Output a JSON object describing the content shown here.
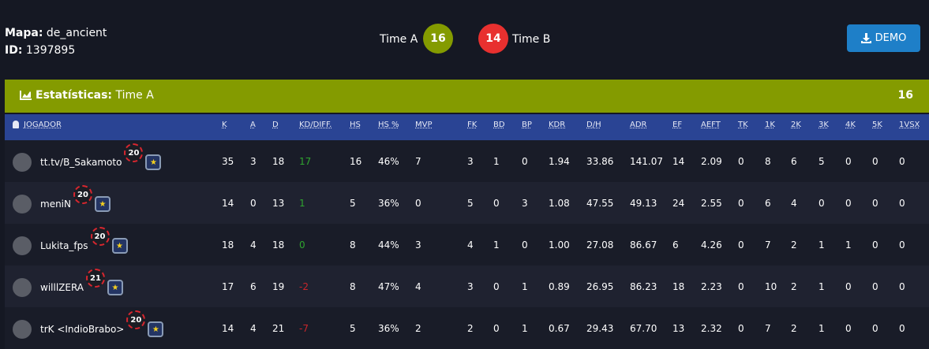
{
  "header": {
    "map_label": "Mapa:",
    "map": "de_ancient",
    "id_label": "ID:",
    "id": "1397895",
    "team_a": "Time A",
    "score_a": "16",
    "score_b": "14",
    "team_b": "Time B",
    "demo_button": "DEMO"
  },
  "stats_bar": {
    "label": "Estatísticas:",
    "team": "Time A",
    "score": "16"
  },
  "table": {
    "columns": [
      "JOGADOR",
      "K",
      "A",
      "D",
      "KD/DIFF.",
      "HS",
      "HS %",
      "MVP",
      "FK",
      "BD",
      "BP",
      "KDR",
      "D/H",
      "ADR",
      "EF",
      "AEFT",
      "TK",
      "1K",
      "2K",
      "3K",
      "4K",
      "5K",
      "1VSX"
    ],
    "rows": [
      {
        "player": "tt.tv/B_Sakamoto",
        "level": "20",
        "cells": [
          "35",
          "3",
          "18",
          "17",
          "16",
          "46%",
          "7",
          "3",
          "1",
          "0",
          "1.94",
          "33.86",
          "141.07",
          "14",
          "2.09",
          "0",
          "8",
          "6",
          "5",
          "0",
          "0",
          "0"
        ]
      },
      {
        "player": "meniN",
        "level": "20",
        "cells": [
          "14",
          "0",
          "13",
          "1",
          "5",
          "36%",
          "0",
          "5",
          "0",
          "3",
          "1.08",
          "47.55",
          "49.13",
          "24",
          "2.55",
          "0",
          "6",
          "4",
          "0",
          "0",
          "0",
          "0"
        ]
      },
      {
        "player": "Lukita_fps",
        "level": "20",
        "cells": [
          "18",
          "4",
          "18",
          "0",
          "8",
          "44%",
          "3",
          "4",
          "1",
          "0",
          "1.00",
          "27.08",
          "86.67",
          "6",
          "4.26",
          "0",
          "7",
          "2",
          "1",
          "1",
          "0",
          "0"
        ]
      },
      {
        "player": "willlZERA",
        "level": "21",
        "cells": [
          "17",
          "6",
          "19",
          "-2",
          "8",
          "47%",
          "4",
          "3",
          "0",
          "1",
          "0.89",
          "26.95",
          "86.23",
          "18",
          "2.23",
          "0",
          "10",
          "2",
          "1",
          "0",
          "0",
          "0"
        ]
      },
      {
        "player": "trK <IndioBrabo>",
        "level": "20",
        "cells": [
          "14",
          "4",
          "21",
          "-7",
          "5",
          "36%",
          "2",
          "2",
          "0",
          "1",
          "0.67",
          "29.43",
          "67.70",
          "13",
          "2.32",
          "0",
          "7",
          "2",
          "1",
          "0",
          "0",
          "0"
        ]
      }
    ]
  }
}
